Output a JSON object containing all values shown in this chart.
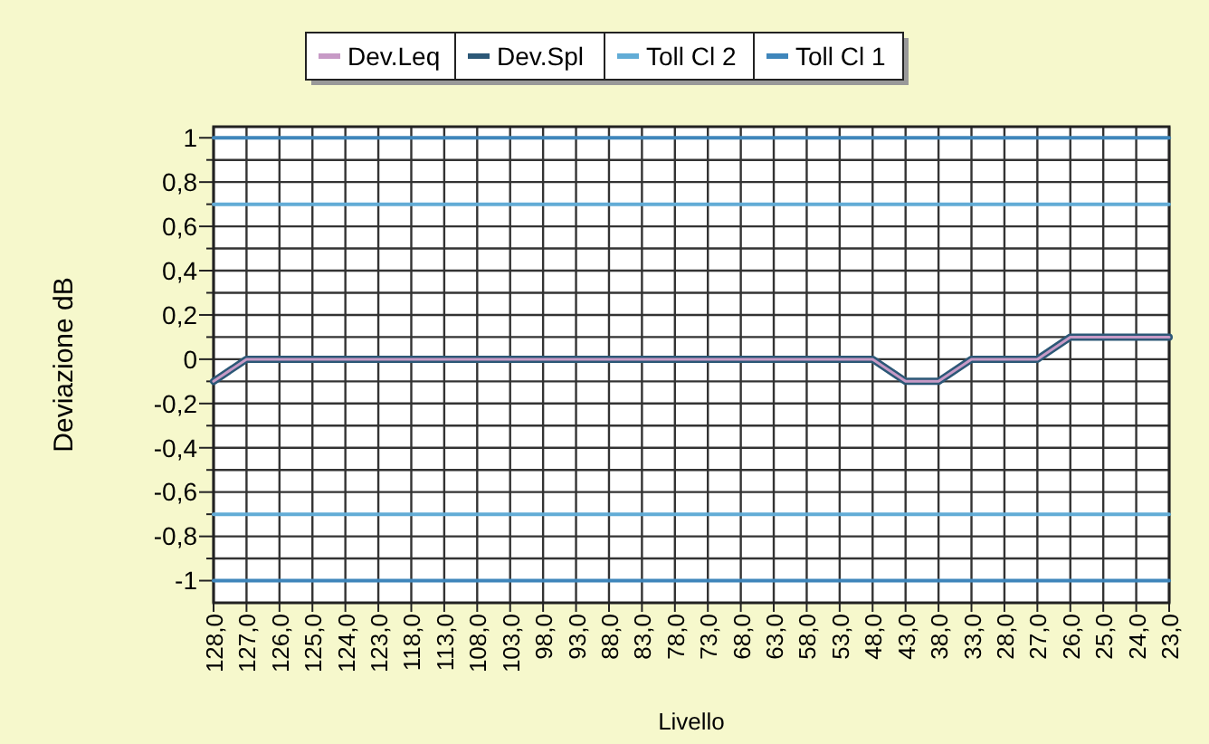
{
  "chart_data": {
    "type": "line",
    "xlabel": "Livello",
    "ylabel": "Deviazione dB",
    "categories": [
      "128,0",
      "127,0",
      "126,0",
      "125,0",
      "124,0",
      "123,0",
      "118,0",
      "113,0",
      "108,0",
      "103,0",
      "98,0",
      "93,0",
      "88,0",
      "83,0",
      "78,0",
      "73,0",
      "68,0",
      "63,0",
      "58,0",
      "53,0",
      "48,0",
      "43,0",
      "38,0",
      "33,0",
      "28,0",
      "27,0",
      "26,0",
      "25,0",
      "24,0",
      "23,0"
    ],
    "series": [
      {
        "name": "Dev.Leq",
        "color": "#c79ac6",
        "values": [
          -0.1,
          0,
          0,
          0,
          0,
          0,
          0,
          0,
          0,
          0,
          0,
          0,
          0,
          0,
          0,
          0,
          0,
          0,
          0,
          0,
          0,
          -0.1,
          -0.1,
          0,
          0,
          0,
          0.1,
          0.1,
          0.1,
          0.1
        ]
      },
      {
        "name": "Dev.Spl",
        "color": "#2c5877",
        "values": [
          -0.1,
          0,
          0,
          0,
          0,
          0,
          0,
          0,
          0,
          0,
          0,
          0,
          0,
          0,
          0,
          0,
          0,
          0,
          0,
          0,
          0,
          -0.1,
          -0.1,
          0,
          0,
          0,
          0.1,
          0.1,
          0.1,
          0.1
        ]
      },
      {
        "name": "Toll Cl 2",
        "color": "#62acd6",
        "values": [
          0.7,
          0.7,
          0.7,
          0.7,
          0.7,
          0.7,
          0.7,
          0.7,
          0.7,
          0.7,
          0.7,
          0.7,
          0.7,
          0.7,
          0.7,
          0.7,
          0.7,
          0.7,
          0.7,
          0.7,
          0.7,
          0.7,
          0.7,
          0.7,
          0.7,
          0.7,
          0.7,
          0.7,
          0.7,
          0.7
        ]
      },
      {
        "color": "#62acd6",
        "values": [
          -0.7,
          -0.7,
          -0.7,
          -0.7,
          -0.7,
          -0.7,
          -0.7,
          -0.7,
          -0.7,
          -0.7,
          -0.7,
          -0.7,
          -0.7,
          -0.7,
          -0.7,
          -0.7,
          -0.7,
          -0.7,
          -0.7,
          -0.7,
          -0.7,
          -0.7,
          -0.7,
          -0.7,
          -0.7,
          -0.7,
          -0.7,
          -0.7,
          -0.7,
          -0.7
        ]
      },
      {
        "name": "Toll Cl 1",
        "color": "#3f86bb",
        "values": [
          1,
          1,
          1,
          1,
          1,
          1,
          1,
          1,
          1,
          1,
          1,
          1,
          1,
          1,
          1,
          1,
          1,
          1,
          1,
          1,
          1,
          1,
          1,
          1,
          1,
          1,
          1,
          1,
          1,
          1
        ]
      },
      {
        "color": "#3f86bb",
        "values": [
          -1,
          -1,
          -1,
          -1,
          -1,
          -1,
          -1,
          -1,
          -1,
          -1,
          -1,
          -1,
          -1,
          -1,
          -1,
          -1,
          -1,
          -1,
          -1,
          -1,
          -1,
          -1,
          -1,
          -1,
          -1,
          -1,
          -1,
          -1,
          -1,
          -1
        ]
      }
    ],
    "ylim": [
      -1.1,
      1.05
    ],
    "yticks": [
      {
        "value": 1,
        "label": "1"
      },
      {
        "value": 0.9,
        "label": null
      },
      {
        "value": 0.8,
        "label": "0,8"
      },
      {
        "value": 0.7,
        "label": null
      },
      {
        "value": 0.6,
        "label": "0,6"
      },
      {
        "value": 0.5,
        "label": null
      },
      {
        "value": 0.4,
        "label": "0,4"
      },
      {
        "value": 0.3,
        "label": null
      },
      {
        "value": 0.2,
        "label": "0,2"
      },
      {
        "value": 0.1,
        "label": null
      },
      {
        "value": 0,
        "label": "0"
      },
      {
        "value": -0.1,
        "label": null
      },
      {
        "value": -0.2,
        "label": "-0,2"
      },
      {
        "value": -0.3,
        "label": null
      },
      {
        "value": -0.4,
        "label": "-0,4"
      },
      {
        "value": -0.5,
        "label": null
      },
      {
        "value": -0.6,
        "label": "-0,6"
      },
      {
        "value": -0.7,
        "label": null
      },
      {
        "value": -0.8,
        "label": "-0,8"
      },
      {
        "value": -0.9,
        "label": null
      },
      {
        "value": -1,
        "label": "-1"
      }
    ],
    "grid": true,
    "legend": "top",
    "line_style": "solid"
  }
}
